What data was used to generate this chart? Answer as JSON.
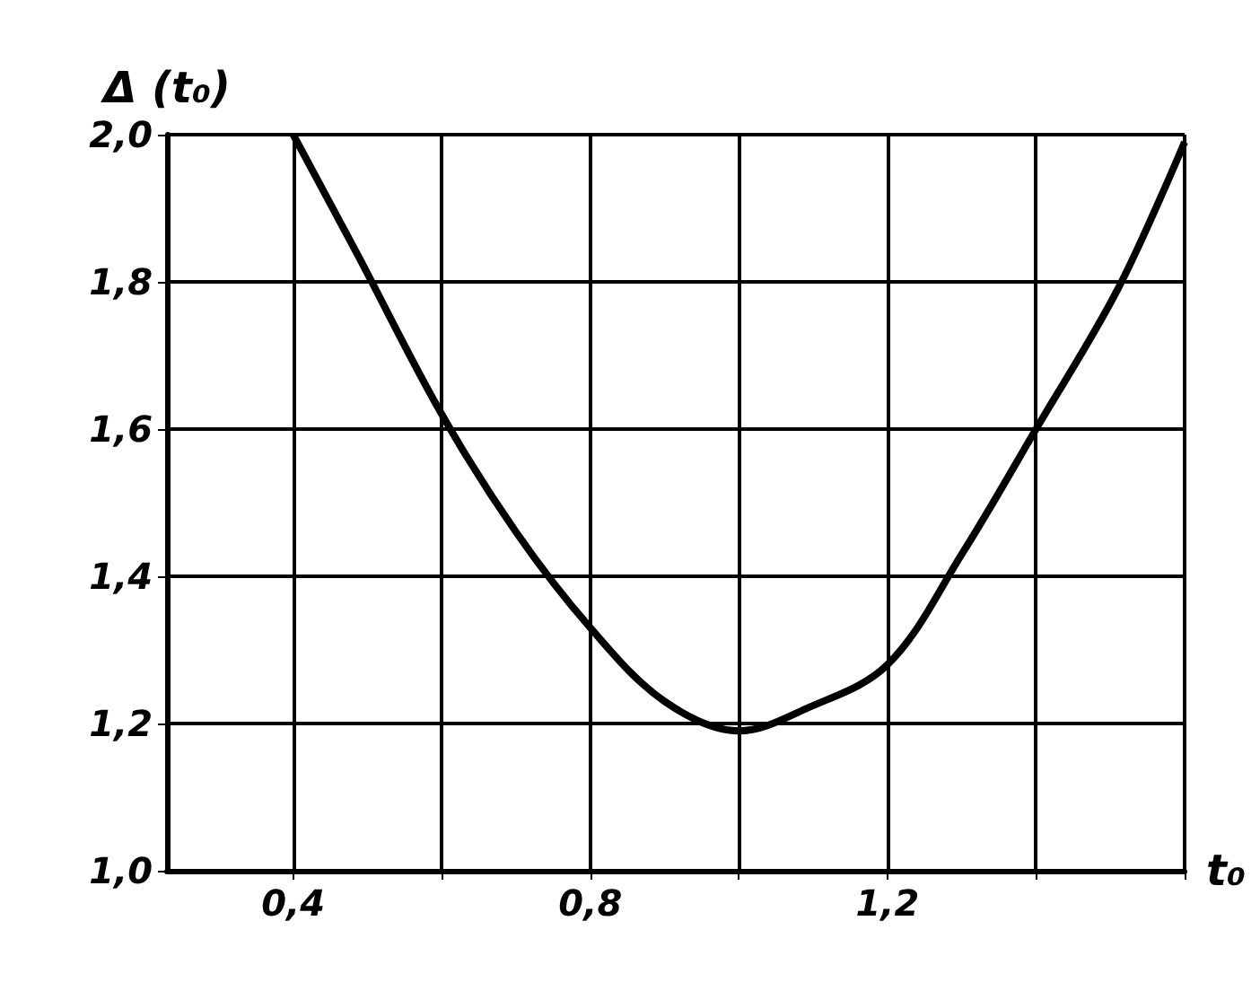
{
  "chart_data": {
    "type": "line",
    "ylabel": "Δ (t₀)",
    "xlabel": "t₀",
    "x": [
      0.4,
      0.485,
      0.6,
      0.7,
      0.8,
      0.9,
      1.0,
      1.09,
      1.2,
      1.3,
      1.4,
      1.51,
      1.6
    ],
    "series": [
      {
        "color": "#000000",
        "values": [
          2.0,
          1.84,
          1.62,
          1.46,
          1.33,
          1.23,
          1.19,
          1.22,
          1.28,
          1.43,
          1.6,
          1.79,
          1.99
        ]
      }
    ],
    "xlim": [
      0.23,
      1.6
    ],
    "ylim": [
      1.0,
      2.0
    ],
    "xticks": [
      {
        "value": 0.4,
        "label": "0,4"
      },
      {
        "value": 0.6,
        "label": null
      },
      {
        "value": 0.8,
        "label": "0,8"
      },
      {
        "value": 1.0,
        "label": null
      },
      {
        "value": 1.2,
        "label": "1,2"
      },
      {
        "value": 1.4,
        "label": null
      },
      {
        "value": 1.6,
        "label": null
      }
    ],
    "yticks": [
      {
        "value": 1.0,
        "label": "1,0"
      },
      {
        "value": 1.2,
        "label": "1,2"
      },
      {
        "value": 1.4,
        "label": "1,4"
      },
      {
        "value": 1.6,
        "label": "1,6"
      },
      {
        "value": 1.8,
        "label": "1,8"
      },
      {
        "value": 2.0,
        "label": "2,0"
      }
    ],
    "grid": true,
    "marker": "none",
    "line_style": "solid"
  }
}
